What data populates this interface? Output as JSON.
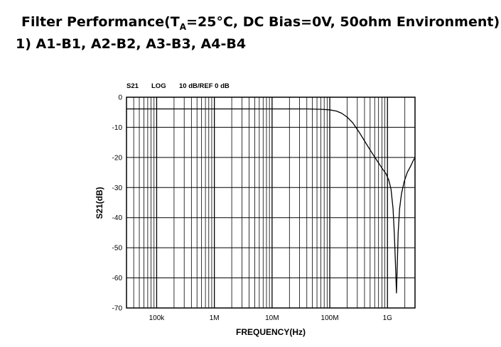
{
  "heading": {
    "prefix": "Filter Performance(T",
    "sub": "A",
    "suffix": "=25°C, DC Bias=0V, 50ohm Environment)"
  },
  "subheading": "1) A1-B1, A2-B2, A3-B3, A4-B4",
  "chart_data": {
    "type": "line",
    "header": {
      "param": "S21",
      "format": "LOG",
      "scale": "10 dB/REF 0 dB"
    },
    "xlabel": "FREQUENCY(Hz)",
    "ylabel": "S21(dB)",
    "x_scale": "log",
    "xlim": [
      30000,
      3000000000
    ],
    "ylim": [
      -70,
      0
    ],
    "grid": true,
    "x_ticks": [
      {
        "value": 100000,
        "label": "100k"
      },
      {
        "value": 1000000,
        "label": "1M"
      },
      {
        "value": 10000000,
        "label": "10M"
      },
      {
        "value": 100000000,
        "label": "100M"
      },
      {
        "value": 1000000000,
        "label": "1G"
      }
    ],
    "y_ticks": [
      0,
      -10,
      -20,
      -30,
      -40,
      -50,
      -60,
      -70
    ],
    "series": [
      {
        "color": "#000000",
        "points": [
          [
            30000,
            -3.9
          ],
          [
            1000000,
            -3.9
          ],
          [
            10000000,
            -3.9
          ],
          [
            40000000,
            -3.9
          ],
          [
            70000000,
            -4.0
          ],
          [
            100000000,
            -4.2
          ],
          [
            130000000,
            -4.6
          ],
          [
            160000000,
            -5.3
          ],
          [
            200000000,
            -6.6
          ],
          [
            250000000,
            -8.5
          ],
          [
            320000000,
            -11.5
          ],
          [
            400000000,
            -14.5
          ],
          [
            500000000,
            -17.5
          ],
          [
            630000000,
            -20.5
          ],
          [
            800000000,
            -23.5
          ],
          [
            950000000,
            -25.5
          ],
          [
            1050000000,
            -27.5
          ],
          [
            1150000000,
            -30.5
          ],
          [
            1250000000,
            -37
          ],
          [
            1320000000,
            -46
          ],
          [
            1380000000,
            -56
          ],
          [
            1430000000,
            -65
          ],
          [
            1470000000,
            -58
          ],
          [
            1530000000,
            -45
          ],
          [
            1620000000,
            -37
          ],
          [
            1750000000,
            -32
          ],
          [
            1950000000,
            -28
          ],
          [
            2200000000,
            -25
          ],
          [
            2500000000,
            -23
          ],
          [
            2800000000,
            -21
          ],
          [
            3000000000,
            -20
          ]
        ]
      }
    ]
  }
}
